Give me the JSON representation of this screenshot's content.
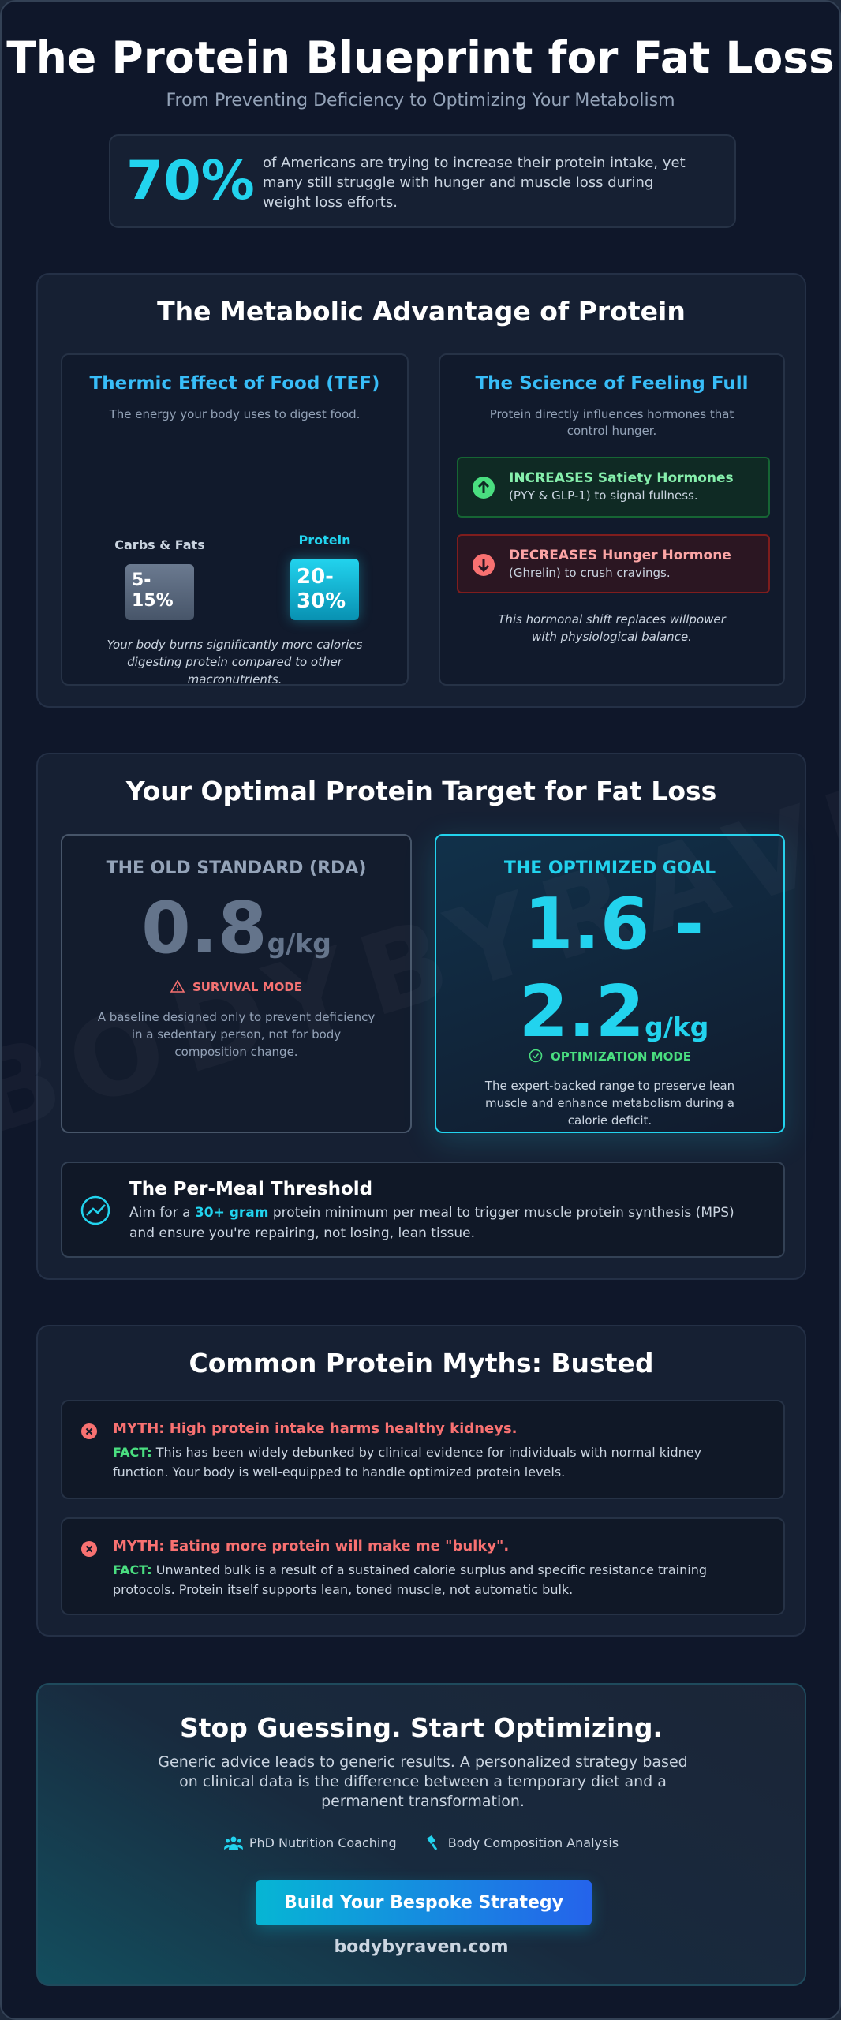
{
  "header": {
    "title": "The Protein Blueprint for Fat Loss",
    "subtitle": "From Preventing Deficiency to Optimizing Your Metabolism"
  },
  "stat": {
    "value": "70%",
    "text": "of Americans are trying to increase their protein intake, yet many still struggle with hunger and muscle loss during weight loss efforts."
  },
  "metabolic": {
    "title": "The Metabolic Advantage of Protein",
    "tef": {
      "title": "Thermic Effect of Food (TEF)",
      "subtitle": "The energy your body uses to digest food.",
      "bars": [
        {
          "label": "Carbs & Fats",
          "value": "5-15%"
        },
        {
          "label": "Protein",
          "value": "20-30%"
        }
      ],
      "note": "Your body burns significantly more calories digesting protein compared to other macronutrients."
    },
    "satiety": {
      "title": "The Science of Feeling Full",
      "subtitle": "Protein directly influences hormones that control hunger.",
      "items": [
        {
          "title": "INCREASES Satiety Hormones",
          "text": "(PYY & GLP-1) to signal fullness."
        },
        {
          "title": "DECREASES Hunger Hormone",
          "text": "(Ghrelin) to crush cravings."
        }
      ],
      "note": "This hormonal shift replaces willpower with physiological balance."
    }
  },
  "target": {
    "title": "Your Optimal Protein Target for Fat Loss",
    "old": {
      "label": "THE OLD STANDARD (RDA)",
      "value": "0.8",
      "unit": "g/kg",
      "badge": "SURVIVAL MODE",
      "text": "A baseline designed only to prevent deficiency in a sedentary person, not for body composition change."
    },
    "optimized": {
      "label": "THE OPTIMIZED GOAL",
      "value": "1.6 - 2.2",
      "unit": "g/kg",
      "badge": "OPTIMIZATION MODE",
      "text": "The expert-backed range to preserve lean muscle and enhance metabolism during a calorie deficit."
    },
    "threshold": {
      "title": "The Per-Meal Threshold",
      "text_before": "Aim for a",
      "highlight": "30+ gram",
      "text_after": "protein minimum per meal to trigger muscle protein synthesis (MPS) and ensure you're repairing, not losing, lean tissue."
    }
  },
  "myths": {
    "title": "Common Protein Myths: Busted",
    "items": [
      {
        "myth": "MYTH: High protein intake harms healthy kidneys.",
        "fact_label": "FACT:",
        "fact": "This has been widely debunked by clinical evidence for individuals with normal kidney function. Your body is well-equipped to handle optimized protein levels."
      },
      {
        "myth": "MYTH: Eating more protein will make me \"bulky\".",
        "fact_label": "FACT:",
        "fact": "Unwanted bulk is a result of a sustained calorie surplus and specific resistance training protocols. Protein itself supports lean, toned muscle, not automatic bulk."
      }
    ]
  },
  "cta": {
    "title": "Stop Guessing. Start Optimizing.",
    "text": "Generic advice leads to generic results. A personalized strategy based on clinical data is the difference between a temporary diet and a permanent transformation.",
    "features": [
      "PhD Nutrition Coaching",
      "Body Composition Analysis"
    ],
    "button": "Build Your Bespoke Strategy",
    "domain": "bodybyraven.com"
  },
  "watermark": "BODYBYRAVEN.COM"
}
